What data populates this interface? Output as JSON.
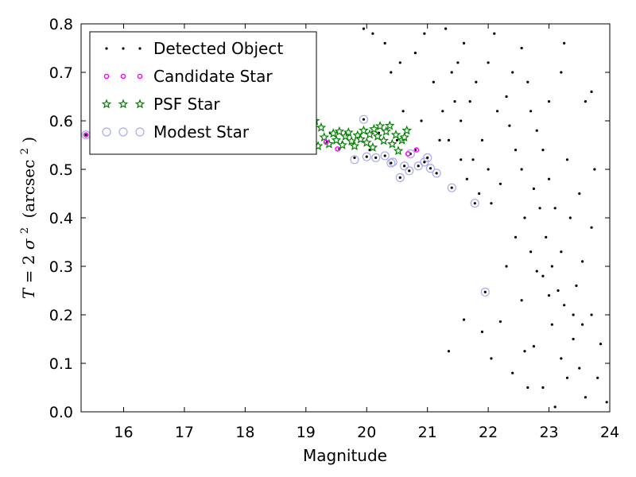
{
  "chart_data": {
    "type": "scatter",
    "xlabel": "Magnitude",
    "ylabel": {
      "lhs": "T",
      "eq": "=",
      "two": "2",
      "sigma": "σ",
      "sup": "2",
      "open": "(arcsec",
      "sup2": "2",
      "close": ")"
    },
    "xlim": [
      15.3,
      24.0
    ],
    "ylim": [
      0.0,
      0.8
    ],
    "xticks": [
      "16",
      "17",
      "18",
      "19",
      "20",
      "21",
      "22",
      "23",
      "24"
    ],
    "yticks": [
      "0.0",
      "0.1",
      "0.2",
      "0.3",
      "0.4",
      "0.5",
      "0.6",
      "0.7",
      "0.8"
    ],
    "grid": false,
    "legend_position": "upper-left",
    "series": [
      {
        "name": "Detected Object",
        "marker": "dot",
        "color": "#000000",
        "points": [
          [
            15.38,
            0.571
          ],
          [
            19.1,
            0.593
          ],
          [
            19.35,
            0.557
          ],
          [
            19.55,
            0.542
          ],
          [
            19.8,
            0.524
          ],
          [
            19.95,
            0.603
          ],
          [
            20.0,
            0.526
          ],
          [
            20.15,
            0.524
          ],
          [
            20.3,
            0.528
          ],
          [
            20.4,
            0.513
          ],
          [
            20.55,
            0.483
          ],
          [
            20.62,
            0.507
          ],
          [
            20.7,
            0.497
          ],
          [
            20.72,
            0.532
          ],
          [
            20.85,
            0.507
          ],
          [
            20.95,
            0.515
          ],
          [
            21.0,
            0.524
          ],
          [
            21.05,
            0.502
          ],
          [
            21.15,
            0.492
          ],
          [
            21.4,
            0.462
          ],
          [
            21.78,
            0.43
          ],
          [
            21.95,
            0.247
          ],
          [
            20.8,
            0.54
          ],
          [
            21.35,
            0.125
          ],
          [
            21.9,
            0.165
          ],
          [
            22.05,
            0.11
          ],
          [
            22.2,
            0.186
          ],
          [
            22.4,
            0.08
          ],
          [
            22.6,
            0.125
          ],
          [
            22.75,
            0.135
          ],
          [
            22.9,
            0.05
          ],
          [
            23.05,
            0.18
          ],
          [
            23.2,
            0.11
          ],
          [
            23.3,
            0.07
          ],
          [
            23.4,
            0.15
          ],
          [
            23.5,
            0.09
          ],
          [
            23.6,
            0.03
          ],
          [
            23.8,
            0.07
          ],
          [
            23.95,
            0.02
          ],
          [
            23.0,
            0.24
          ],
          [
            22.8,
            0.29
          ],
          [
            22.55,
            0.23
          ],
          [
            23.45,
            0.26
          ],
          [
            23.7,
            0.2
          ],
          [
            23.2,
            0.33
          ],
          [
            23.55,
            0.31
          ],
          [
            22.3,
            0.3
          ],
          [
            22.95,
            0.36
          ],
          [
            23.35,
            0.4
          ],
          [
            23.7,
            0.38
          ],
          [
            21.6,
            0.19
          ],
          [
            23.1,
            0.01
          ],
          [
            22.65,
            0.05
          ],
          [
            23.85,
            0.14
          ],
          [
            23.5,
            0.45
          ],
          [
            23.3,
            0.52
          ],
          [
            23.6,
            0.64
          ],
          [
            23.7,
            0.66
          ],
          [
            23.75,
            0.5
          ],
          [
            23.25,
            0.76
          ],
          [
            23.2,
            0.7
          ],
          [
            23.0,
            0.64
          ],
          [
            22.8,
            0.58
          ],
          [
            20.8,
            0.74
          ],
          [
            21.1,
            0.68
          ],
          [
            21.3,
            0.79
          ],
          [
            20.6,
            0.62
          ],
          [
            20.4,
            0.7
          ],
          [
            20.1,
            0.78
          ],
          [
            19.95,
            0.79
          ],
          [
            20.9,
            0.6
          ],
          [
            21.2,
            0.56
          ],
          [
            20.3,
            0.76
          ],
          [
            20.55,
            0.72
          ],
          [
            21.45,
            0.64
          ],
          [
            21.55,
            0.6
          ],
          [
            20.95,
            0.78
          ],
          [
            19.05,
            0.56
          ],
          [
            19.2,
            0.545
          ],
          [
            19.4,
            0.575
          ],
          [
            19.6,
            0.555
          ],
          [
            19.75,
            0.56
          ],
          [
            20.05,
            0.54
          ],
          [
            20.2,
            0.575
          ],
          [
            20.5,
            0.56
          ],
          [
            22.1,
            0.78
          ],
          [
            22.0,
            0.72
          ],
          [
            21.8,
            0.68
          ],
          [
            21.7,
            0.64
          ],
          [
            22.15,
            0.62
          ],
          [
            22.35,
            0.59
          ],
          [
            22.45,
            0.54
          ],
          [
            22.55,
            0.5
          ],
          [
            22.2,
            0.47
          ],
          [
            22.05,
            0.43
          ],
          [
            22.6,
            0.4
          ],
          [
            22.75,
            0.46
          ],
          [
            22.85,
            0.42
          ],
          [
            22.45,
            0.36
          ],
          [
            22.7,
            0.33
          ],
          [
            22.9,
            0.28
          ],
          [
            23.05,
            0.3
          ],
          [
            23.15,
            0.25
          ],
          [
            23.25,
            0.22
          ],
          [
            23.4,
            0.2
          ],
          [
            23.55,
            0.18
          ],
          [
            21.9,
            0.56
          ],
          [
            21.75,
            0.52
          ],
          [
            21.65,
            0.48
          ],
          [
            21.85,
            0.45
          ],
          [
            22.0,
            0.5
          ],
          [
            22.3,
            0.65
          ],
          [
            22.4,
            0.7
          ],
          [
            22.55,
            0.75
          ],
          [
            22.65,
            0.68
          ],
          [
            22.7,
            0.62
          ],
          [
            22.9,
            0.54
          ],
          [
            23.0,
            0.48
          ],
          [
            23.1,
            0.42
          ],
          [
            21.5,
            0.72
          ],
          [
            21.6,
            0.76
          ],
          [
            21.4,
            0.7
          ],
          [
            21.25,
            0.62
          ],
          [
            21.35,
            0.56
          ],
          [
            21.55,
            0.52
          ]
        ]
      },
      {
        "name": "Candidate Star",
        "marker": "small-circle",
        "color": "#ff00ff",
        "points": [
          [
            15.38,
            0.571
          ],
          [
            19.33,
            0.556
          ],
          [
            19.52,
            0.542
          ],
          [
            20.68,
            0.532
          ],
          [
            20.82,
            0.54
          ]
        ]
      },
      {
        "name": "PSF Star",
        "marker": "star",
        "color": "#008000",
        "points": [
          [
            18.98,
            0.545
          ],
          [
            19.05,
            0.575
          ],
          [
            19.1,
            0.558
          ],
          [
            19.15,
            0.6
          ],
          [
            19.2,
            0.548
          ],
          [
            19.25,
            0.586
          ],
          [
            19.3,
            0.566
          ],
          [
            19.38,
            0.552
          ],
          [
            19.45,
            0.574
          ],
          [
            19.5,
            0.56
          ],
          [
            19.55,
            0.578
          ],
          [
            19.6,
            0.55
          ],
          [
            19.65,
            0.568
          ],
          [
            19.7,
            0.576
          ],
          [
            19.75,
            0.558
          ],
          [
            19.8,
            0.548
          ],
          [
            19.85,
            0.57
          ],
          [
            19.9,
            0.562
          ],
          [
            19.95,
            0.58
          ],
          [
            20.0,
            0.555
          ],
          [
            20.05,
            0.572
          ],
          [
            20.1,
            0.545
          ],
          [
            20.12,
            0.583
          ],
          [
            20.18,
            0.568
          ],
          [
            20.22,
            0.589
          ],
          [
            20.28,
            0.559
          ],
          [
            20.32,
            0.578
          ],
          [
            20.38,
            0.59
          ],
          [
            20.42,
            0.552
          ],
          [
            20.48,
            0.571
          ],
          [
            20.52,
            0.538
          ],
          [
            20.58,
            0.56
          ],
          [
            20.62,
            0.566
          ],
          [
            20.66,
            0.58
          ]
        ]
      },
      {
        "name": "Modest Star",
        "marker": "hollow-circle",
        "color": "#aaaaee",
        "points": [
          [
            15.38,
            0.571
          ],
          [
            15.95,
            0.578
          ],
          [
            16.1,
            0.566
          ],
          [
            19.95,
            0.603
          ],
          [
            19.8,
            0.52
          ],
          [
            20.0,
            0.526
          ],
          [
            20.15,
            0.524
          ],
          [
            20.3,
            0.528
          ],
          [
            20.4,
            0.513
          ],
          [
            20.55,
            0.483
          ],
          [
            20.62,
            0.507
          ],
          [
            20.7,
            0.497
          ],
          [
            20.72,
            0.532
          ],
          [
            20.85,
            0.507
          ],
          [
            20.95,
            0.515
          ],
          [
            21.0,
            0.524
          ],
          [
            21.05,
            0.502
          ],
          [
            21.15,
            0.492
          ],
          [
            21.4,
            0.462
          ],
          [
            21.78,
            0.43
          ],
          [
            21.95,
            0.247
          ],
          [
            20.43,
            0.515
          ]
        ]
      }
    ]
  }
}
